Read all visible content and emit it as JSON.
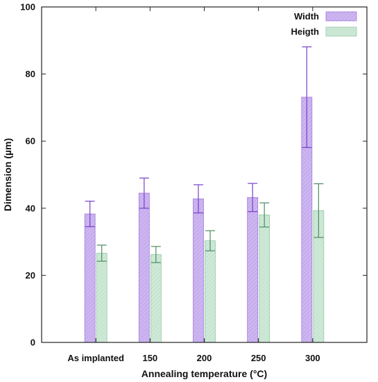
{
  "chart_data": {
    "type": "bar",
    "title": "",
    "xlabel": "Annealing temperature (°C)",
    "ylabel": "Dimension (µm)",
    "ylim": [
      0,
      100
    ],
    "yticks": [
      0,
      20,
      40,
      60,
      80,
      100
    ],
    "grid": false,
    "legend_position": "top-right",
    "categories": [
      "As implanted",
      "150",
      "200",
      "250",
      "300"
    ],
    "series": [
      {
        "name": "Width",
        "color": "#c9b0ee",
        "stroke": "#a07ad9",
        "values": [
          38.3,
          44.5,
          42.8,
          43.2,
          73.1
        ],
        "errors": [
          3.8,
          4.5,
          4.2,
          4.2,
          15.0
        ]
      },
      {
        "name": "Heigth",
        "color": "#c8e6d3",
        "stroke": "#95c8a6",
        "values": [
          26.6,
          26.2,
          30.3,
          38.0,
          39.3
        ],
        "errors": [
          2.4,
          2.4,
          3.0,
          3.6,
          8.0
        ]
      }
    ]
  }
}
